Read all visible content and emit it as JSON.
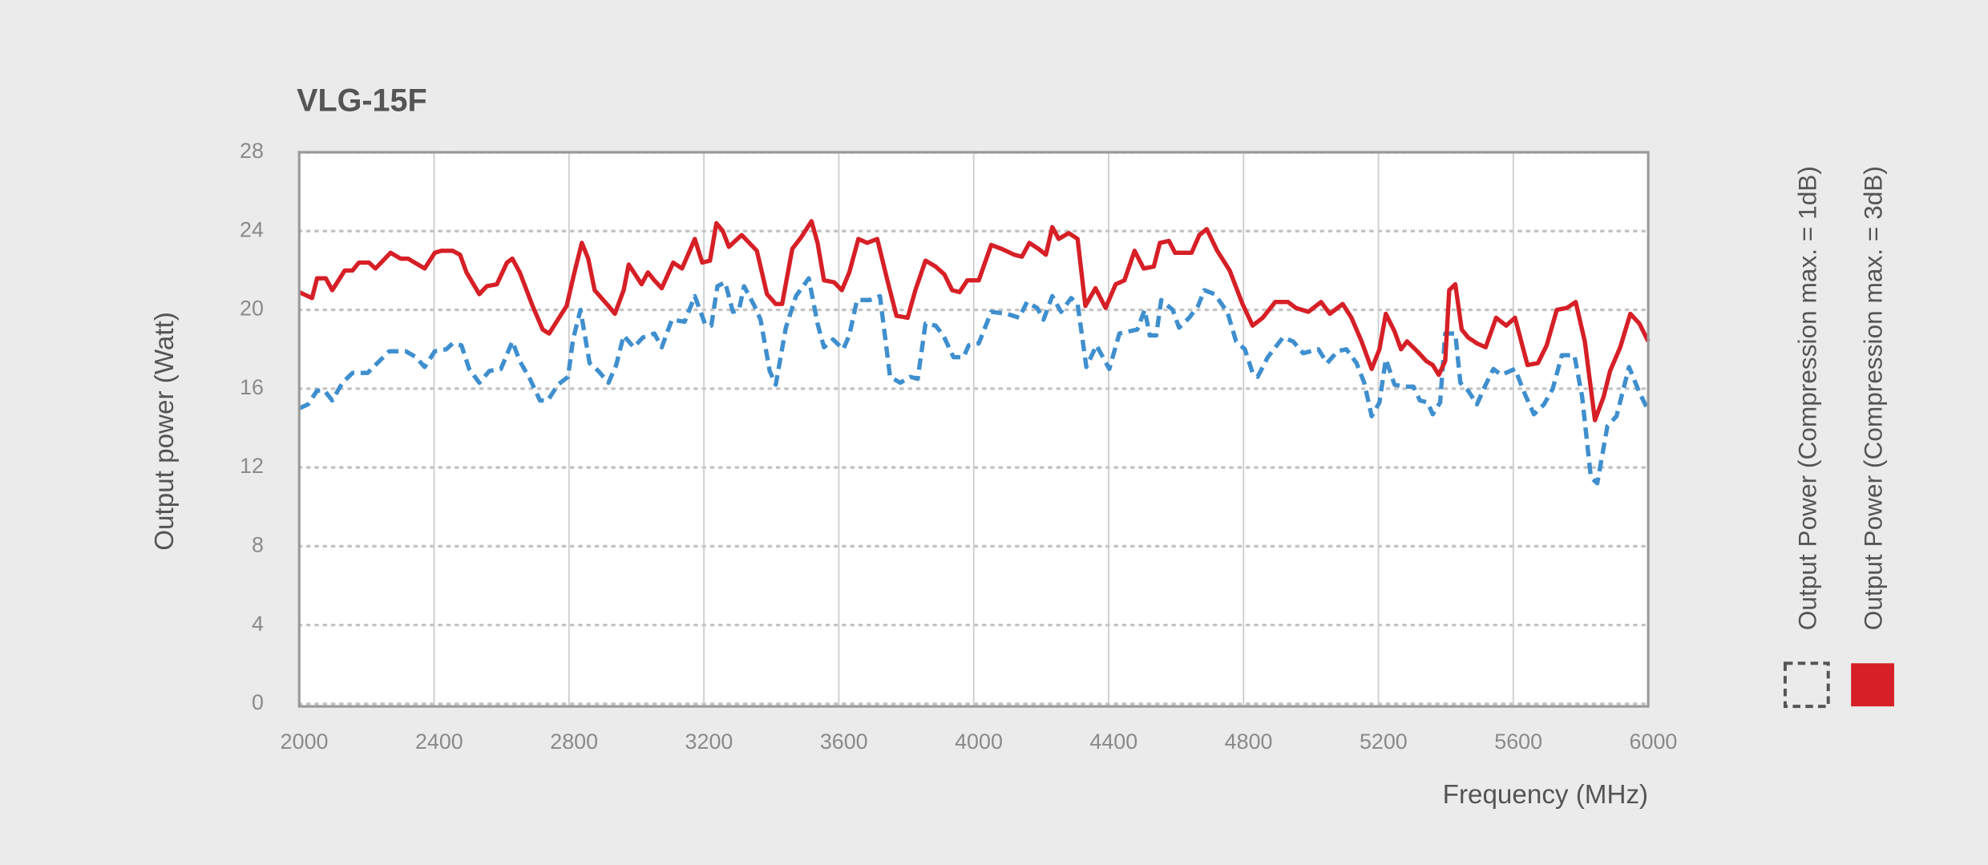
{
  "chart_data": {
    "type": "line",
    "title": "VLG-15F",
    "x_label": "Frequency (MHz)",
    "y_label": "Output power (Watt)",
    "xlim": [
      2000,
      6000
    ],
    "xticks": [
      2000,
      2400,
      2800,
      3200,
      3600,
      4000,
      4400,
      4800,
      5200,
      5600,
      6000
    ],
    "ylim": [
      0,
      28
    ],
    "yticks": [
      0,
      4,
      8,
      12,
      16,
      20,
      24,
      28
    ],
    "grid": true,
    "legend": "right",
    "series": [
      {
        "name": "Output Power (Compression max. = 1dB)",
        "color": "#3f8fce",
        "style": "dashed",
        "x": [
          2000,
          2026,
          2053,
          2075,
          2098,
          2128,
          2158,
          2203,
          2226,
          2267,
          2316,
          2346,
          2372,
          2402,
          2436,
          2455,
          2481,
          2504,
          2534,
          2564,
          2598,
          2632,
          2654,
          2684,
          2714,
          2737,
          2767,
          2797,
          2812,
          2834,
          2861,
          2887,
          2917,
          2940,
          2962,
          2992,
          3019,
          3053,
          3075,
          3105,
          3143,
          3173,
          3203,
          3222,
          3240,
          3263,
          3286,
          3304,
          3319,
          3350,
          3368,
          3395,
          3413,
          3443,
          3473,
          3511,
          3537,
          3556,
          3583,
          3613,
          3631,
          3654,
          3692,
          3722,
          3752,
          3782,
          3812,
          3834,
          3857,
          3887,
          3910,
          3940,
          3970,
          3985,
          4015,
          4052,
          4098,
          4135,
          4158,
          4188,
          4207,
          4233,
          4259,
          4289,
          4308,
          4334,
          4364,
          4402,
          4432,
          4458,
          4485,
          4507,
          4522,
          4541,
          4556,
          4590,
          4609,
          4639,
          4665,
          4684,
          4714,
          4752,
          4778,
          4804,
          4827,
          4842,
          4872,
          4917,
          4947,
          4977,
          5022,
          5048,
          5079,
          5105,
          5135,
          5158,
          5180,
          5203,
          5222,
          5248,
          5278,
          5304,
          5323,
          5346,
          5361,
          5383,
          5398,
          5428,
          5443,
          5466,
          5492,
          5518,
          5541,
          5564,
          5605,
          5635,
          5661,
          5691,
          5717,
          5744,
          5781,
          5804,
          5830,
          5849,
          5879,
          5906,
          5943,
          5974,
          6000
        ],
        "values": [
          15.0,
          15.2,
          15.9,
          15.9,
          15.4,
          16.3,
          16.8,
          16.8,
          17.2,
          17.9,
          17.9,
          17.6,
          17.1,
          17.9,
          18.0,
          18.3,
          18.2,
          17.0,
          16.3,
          16.9,
          17.0,
          18.4,
          17.4,
          16.5,
          15.4,
          15.4,
          16.2,
          16.6,
          18.5,
          20.0,
          17.3,
          16.9,
          16.3,
          17.2,
          18.7,
          18.1,
          18.6,
          18.8,
          18.1,
          19.5,
          19.4,
          20.7,
          19.3,
          19.2,
          21.2,
          21.4,
          19.9,
          20.0,
          21.2,
          20.2,
          19.5,
          16.9,
          16.2,
          19.1,
          20.7,
          21.6,
          19.3,
          18.1,
          18.5,
          18.0,
          18.7,
          20.5,
          20.5,
          20.7,
          16.6,
          16.3,
          16.6,
          16.5,
          19.3,
          19.2,
          18.7,
          17.6,
          17.6,
          18.2,
          18.3,
          19.9,
          19.8,
          19.6,
          20.4,
          20.1,
          19.5,
          20.7,
          19.9,
          20.6,
          20.3,
          17.1,
          18.2,
          17.0,
          18.8,
          18.9,
          19.0,
          20.0,
          18.7,
          18.7,
          20.5,
          20.0,
          19.1,
          19.6,
          20.2,
          21.0,
          20.8,
          19.9,
          18.4,
          18.0,
          16.8,
          16.6,
          17.6,
          18.6,
          18.4,
          17.8,
          18.0,
          17.3,
          17.9,
          18.0,
          17.3,
          16.3,
          14.6,
          15.3,
          17.5,
          16.2,
          16.1,
          16.1,
          15.4,
          15.3,
          14.7,
          15.3,
          18.8,
          18.8,
          16.3,
          15.9,
          15.2,
          16.2,
          17.0,
          16.7,
          17.0,
          15.7,
          14.7,
          15.2,
          16.0,
          17.7,
          17.7,
          15.6,
          11.5,
          11.2,
          14.1,
          14.6,
          17.1,
          15.8,
          14.9
        ]
      },
      {
        "name": "Output Power (Compression max. = 3dB)",
        "color": "#d61f26",
        "style": "solid",
        "x": [
          2000,
          2038,
          2053,
          2079,
          2098,
          2135,
          2158,
          2177,
          2207,
          2226,
          2271,
          2301,
          2323,
          2372,
          2402,
          2421,
          2455,
          2477,
          2496,
          2534,
          2556,
          2586,
          2616,
          2632,
          2654,
          2692,
          2722,
          2741,
          2778,
          2793,
          2816,
          2838,
          2857,
          2876,
          2917,
          2936,
          2962,
          2977,
          3000,
          3015,
          3034,
          3053,
          3075,
          3109,
          3135,
          3173,
          3195,
          3218,
          3237,
          3256,
          3274,
          3312,
          3357,
          3387,
          3413,
          3432,
          3462,
          3489,
          3519,
          3537,
          3556,
          3586,
          3609,
          3631,
          3658,
          3684,
          3714,
          3744,
          3771,
          3804,
          3827,
          3857,
          3887,
          3913,
          3936,
          3958,
          3981,
          4015,
          4052,
          4082,
          4120,
          4143,
          4165,
          4192,
          4214,
          4233,
          4252,
          4282,
          4308,
          4331,
          4361,
          4391,
          4421,
          4447,
          4477,
          4504,
          4534,
          4552,
          4579,
          4597,
          4646,
          4669,
          4691,
          4722,
          4759,
          4797,
          4827,
          4857,
          4894,
          4932,
          4955,
          4992,
          5030,
          5056,
          5094,
          5120,
          5150,
          5180,
          5203,
          5222,
          5248,
          5267,
          5285,
          5315,
          5342,
          5361,
          5379,
          5398,
          5410,
          5428,
          5447,
          5466,
          5492,
          5518,
          5549,
          5579,
          5605,
          5642,
          5673,
          5699,
          5729,
          5759,
          5785,
          5812,
          5842,
          5868,
          5887,
          5917,
          5947,
          5974,
          6000
        ],
        "values": [
          20.9,
          20.6,
          21.6,
          21.6,
          21.0,
          22.0,
          22.0,
          22.4,
          22.4,
          22.1,
          22.9,
          22.6,
          22.6,
          22.1,
          22.9,
          23.0,
          23.0,
          22.8,
          21.9,
          20.8,
          21.2,
          21.3,
          22.4,
          22.6,
          21.9,
          20.2,
          19.0,
          18.8,
          19.8,
          20.2,
          21.9,
          23.4,
          22.6,
          21.0,
          20.2,
          19.8,
          21.0,
          22.3,
          21.7,
          21.3,
          21.9,
          21.5,
          21.1,
          22.4,
          22.1,
          23.6,
          22.4,
          22.5,
          24.4,
          24.0,
          23.2,
          23.8,
          23.0,
          20.8,
          20.3,
          20.3,
          23.1,
          23.7,
          24.5,
          23.4,
          21.5,
          21.4,
          21.0,
          21.9,
          23.6,
          23.4,
          23.6,
          21.5,
          19.7,
          19.6,
          21.0,
          22.5,
          22.2,
          21.8,
          21.0,
          20.9,
          21.5,
          21.5,
          23.3,
          23.1,
          22.8,
          22.7,
          23.4,
          23.1,
          22.8,
          24.2,
          23.6,
          23.9,
          23.6,
          20.2,
          21.1,
          20.1,
          21.3,
          21.5,
          23.0,
          22.1,
          22.2,
          23.4,
          23.5,
          22.9,
          22.9,
          23.8,
          24.1,
          23.0,
          22.0,
          20.3,
          19.2,
          19.6,
          20.4,
          20.4,
          20.1,
          19.9,
          20.4,
          19.8,
          20.3,
          19.6,
          18.4,
          17.0,
          18.0,
          19.8,
          18.9,
          18.0,
          18.4,
          17.9,
          17.4,
          17.2,
          16.7,
          17.4,
          21.0,
          21.3,
          19.0,
          18.6,
          18.3,
          18.1,
          19.6,
          19.2,
          19.6,
          17.2,
          17.3,
          18.2,
          20.0,
          20.1,
          20.4,
          18.4,
          14.4,
          15.6,
          16.9,
          18.1,
          19.8,
          19.3,
          18.4
        ]
      }
    ]
  }
}
